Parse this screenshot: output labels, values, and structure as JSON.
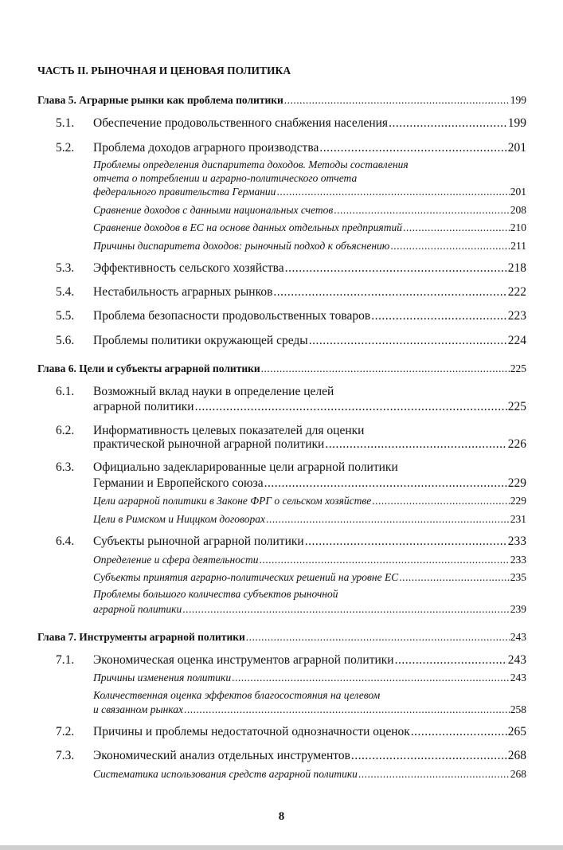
{
  "part_title": "ЧАСТЬ II. РЫНОЧНАЯ И ЦЕНОВАЯ ПОЛИТИКА",
  "chapters": [
    {
      "title": "Глава 5. Аграрные рынки как проблема политики",
      "page": "199",
      "sections": [
        {
          "number": "5.1.",
          "lines": [
            "Обеспечение продовольственного снабжения населения"
          ],
          "page": "199"
        },
        {
          "number": "5.2.",
          "lines": [
            "Проблема доходов аграрного производства"
          ],
          "page": "201",
          "subsections": [
            {
              "lines": [
                "Проблемы определения диспаритета доходов. Методы составления",
                "отчета о потреблении и аграрно-политического отчета",
                "федерального правительства Германии"
              ],
              "page": "201"
            },
            {
              "lines": [
                "Сравнение доходов с данными национальных счетов"
              ],
              "page": "208"
            },
            {
              "lines": [
                "Сравнение доходов в ЕС на основе данных отдельных предприятий"
              ],
              "page": "210"
            },
            {
              "lines": [
                "Причины диспаритета доходов: рыночный подход к объяснению"
              ],
              "page": "211"
            }
          ]
        },
        {
          "number": "5.3.",
          "lines": [
            "Эффективность сельского хозяйства"
          ],
          "page": "218"
        },
        {
          "number": "5.4.",
          "lines": [
            "Нестабильность аграрных рынков"
          ],
          "page": "222"
        },
        {
          "number": "5.5.",
          "lines": [
            "Проблема безопасности продовольственных товаров"
          ],
          "page": "223"
        },
        {
          "number": "5.6.",
          "lines": [
            "Проблемы политики окружающей среды"
          ],
          "page": "224"
        }
      ]
    },
    {
      "title": "Глава 6. Цели и субъекты аграрной политики",
      "page": "225",
      "sections": [
        {
          "number": "6.1.",
          "lines": [
            "Возможный вклад науки в определение целей",
            "аграрной политики"
          ],
          "page": "225"
        },
        {
          "number": "6.2.",
          "lines": [
            "Информативность целевых показателей для оценки",
            "практической рыночной аграрной политики"
          ],
          "page": "226"
        },
        {
          "number": "6.3.",
          "lines": [
            "Официально задекларированные цели аграрной политики",
            "Германии и Европейского союза"
          ],
          "page": "229",
          "subsections": [
            {
              "lines": [
                "Цели аграрной политики в Законе ФРГ о сельском хозяйстве"
              ],
              "page": "229"
            },
            {
              "lines": [
                "Цели в Римском и Ниццком договорах"
              ],
              "page": "231"
            }
          ]
        },
        {
          "number": "6.4.",
          "lines": [
            "Субъекты рыночной аграрной политики"
          ],
          "page": "233",
          "subsections": [
            {
              "lines": [
                "Определение и сфера деятельности"
              ],
              "page": "233"
            },
            {
              "lines": [
                "Субъекты принятия аграрно-политических решений на уровне ЕС"
              ],
              "page": "235"
            },
            {
              "lines": [
                "Проблемы большого количества субъектов рыночной",
                "аграрной политики"
              ],
              "page": "239"
            }
          ]
        }
      ]
    },
    {
      "title": "Глава 7. Инструменты аграрной политики",
      "page": "243",
      "sections": [
        {
          "number": "7.1.",
          "lines": [
            "Экономическая оценка инструментов аграрной политики"
          ],
          "page": "243",
          "subsections": [
            {
              "lines": [
                "Причины изменения политики"
              ],
              "page": "243"
            },
            {
              "lines": [
                "Количественная оценка эффектов благосостояния на целевом",
                "и связанном рынках"
              ],
              "page": "258"
            }
          ]
        },
        {
          "number": "7.2.",
          "lines": [
            "Причины и проблемы недостаточной однозначности оценок"
          ],
          "page": "265"
        },
        {
          "number": "7.3.",
          "lines": [
            "Экономический анализ отдельных инструментов"
          ],
          "page": "268",
          "subsections": [
            {
              "lines": [
                "Систематика использования средств аграрной политики"
              ],
              "page": "268"
            }
          ]
        }
      ]
    }
  ],
  "page_number": "8"
}
